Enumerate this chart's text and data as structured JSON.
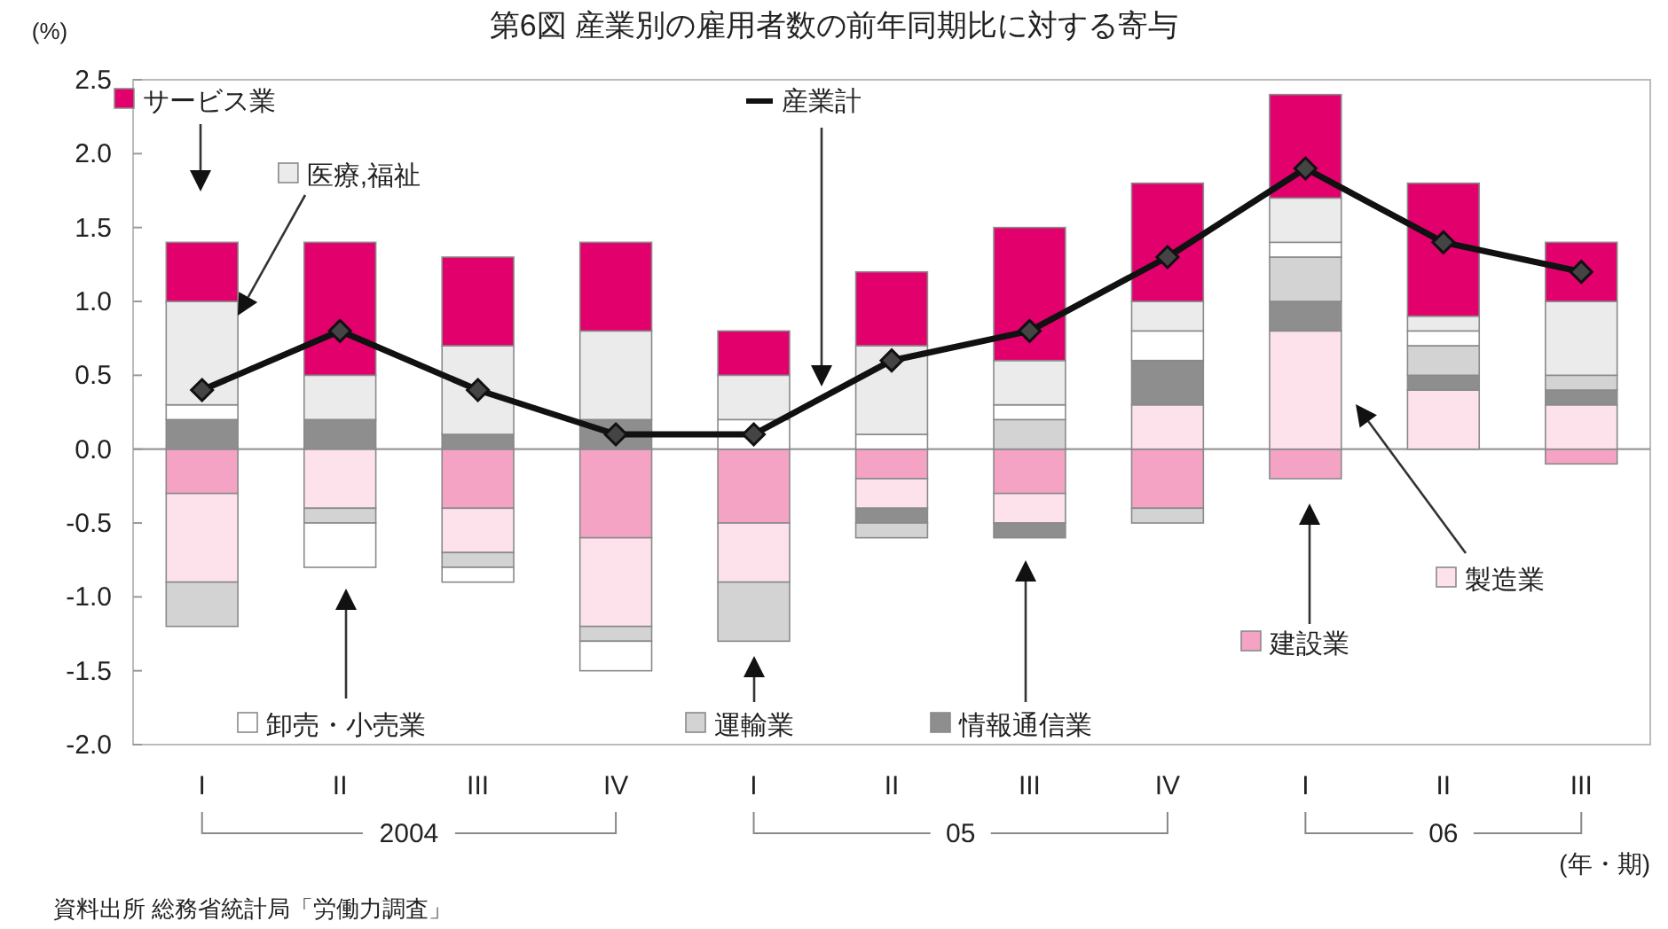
{
  "chart_data": {
    "type": "bar",
    "stacked": true,
    "title": "第6図 産業別の雇用者数の前年同期比に対する寄与",
    "ylabel": "(%)",
    "categories": [
      "I",
      "II",
      "III",
      "IV",
      "I",
      "II",
      "III",
      "IV",
      "I",
      "II",
      "III"
    ],
    "series": [
      {
        "name": "建設業",
        "color": "#f4a3c4",
        "values": [
          -0.3,
          0,
          -0.4,
          -0.6,
          -0.5,
          -0.2,
          -0.3,
          -0.4,
          -0.2,
          0,
          -0.1
        ]
      },
      {
        "name": "製造業",
        "color": "#fde2ec",
        "values": [
          -0.6,
          -0.4,
          -0.3,
          -0.6,
          -0.4,
          -0.2,
          -0.2,
          0.3,
          0.8,
          0.4,
          0.3
        ]
      },
      {
        "name": "情報通信業",
        "color": "#8e8e8e",
        "values": [
          0.2,
          0.2,
          0.1,
          0.2,
          0,
          -0.1,
          -0.1,
          0.3,
          0.2,
          0.1,
          0.1
        ]
      },
      {
        "name": "運輸業",
        "color": "#d3d3d3",
        "values": [
          -0.3,
          -0.1,
          -0.1,
          -0.1,
          -0.4,
          -0.1,
          0.2,
          -0.1,
          0.3,
          0.2,
          0.1
        ]
      },
      {
        "name": "卸売・小売業",
        "color": "#ffffff",
        "values": [
          0.1,
          -0.3,
          -0.1,
          -0.2,
          0.2,
          0.1,
          0.1,
          0.2,
          0.1,
          0.1,
          0
        ]
      },
      {
        "name": "医療,福祉",
        "color": "#ebebeb",
        "values": [
          0.7,
          0.3,
          0.6,
          0.6,
          0.3,
          0.6,
          0.3,
          0.2,
          0.3,
          0.1,
          0.5
        ]
      },
      {
        "name": "サービス業",
        "color": "#e2006c",
        "values": [
          0.4,
          0.9,
          0.6,
          0.6,
          0.3,
          0.5,
          0.9,
          0.8,
          0.7,
          0.9,
          0.4
        ]
      },
      {
        "name": "産業計",
        "type": "line",
        "color": "#111111",
        "marker": "diamond",
        "values": [
          0.4,
          0.8,
          0.4,
          0.1,
          0.1,
          0.6,
          0.8,
          1.3,
          1.9,
          1.4,
          1.2
        ]
      }
    ],
    "ylim": [
      -2.0,
      2.5
    ],
    "yticks": [
      {
        "value": 2.5,
        "label": "2.5"
      },
      {
        "value": 2.0,
        "label": "2.0"
      },
      {
        "value": 1.5,
        "label": "1.5"
      },
      {
        "value": 1.0,
        "label": "1.0"
      },
      {
        "value": 0.5,
        "label": "0.5"
      },
      {
        "value": 0.0,
        "label": "0.0"
      },
      {
        "value": -0.5,
        "label": "-0.5"
      },
      {
        "value": -1.0,
        "label": "-1.0"
      },
      {
        "value": -1.5,
        "label": "-1.5"
      },
      {
        "value": -2.0,
        "label": "-2.0"
      }
    ],
    "legend": "top",
    "ref_lines": [
      {
        "axis": "y",
        "value": 0,
        "color": "#999999"
      }
    ],
    "annotations": [
      "2004",
      "05",
      "06",
      "(年・期)",
      "資料出所 総務省統計局「労働力調査」"
    ]
  }
}
